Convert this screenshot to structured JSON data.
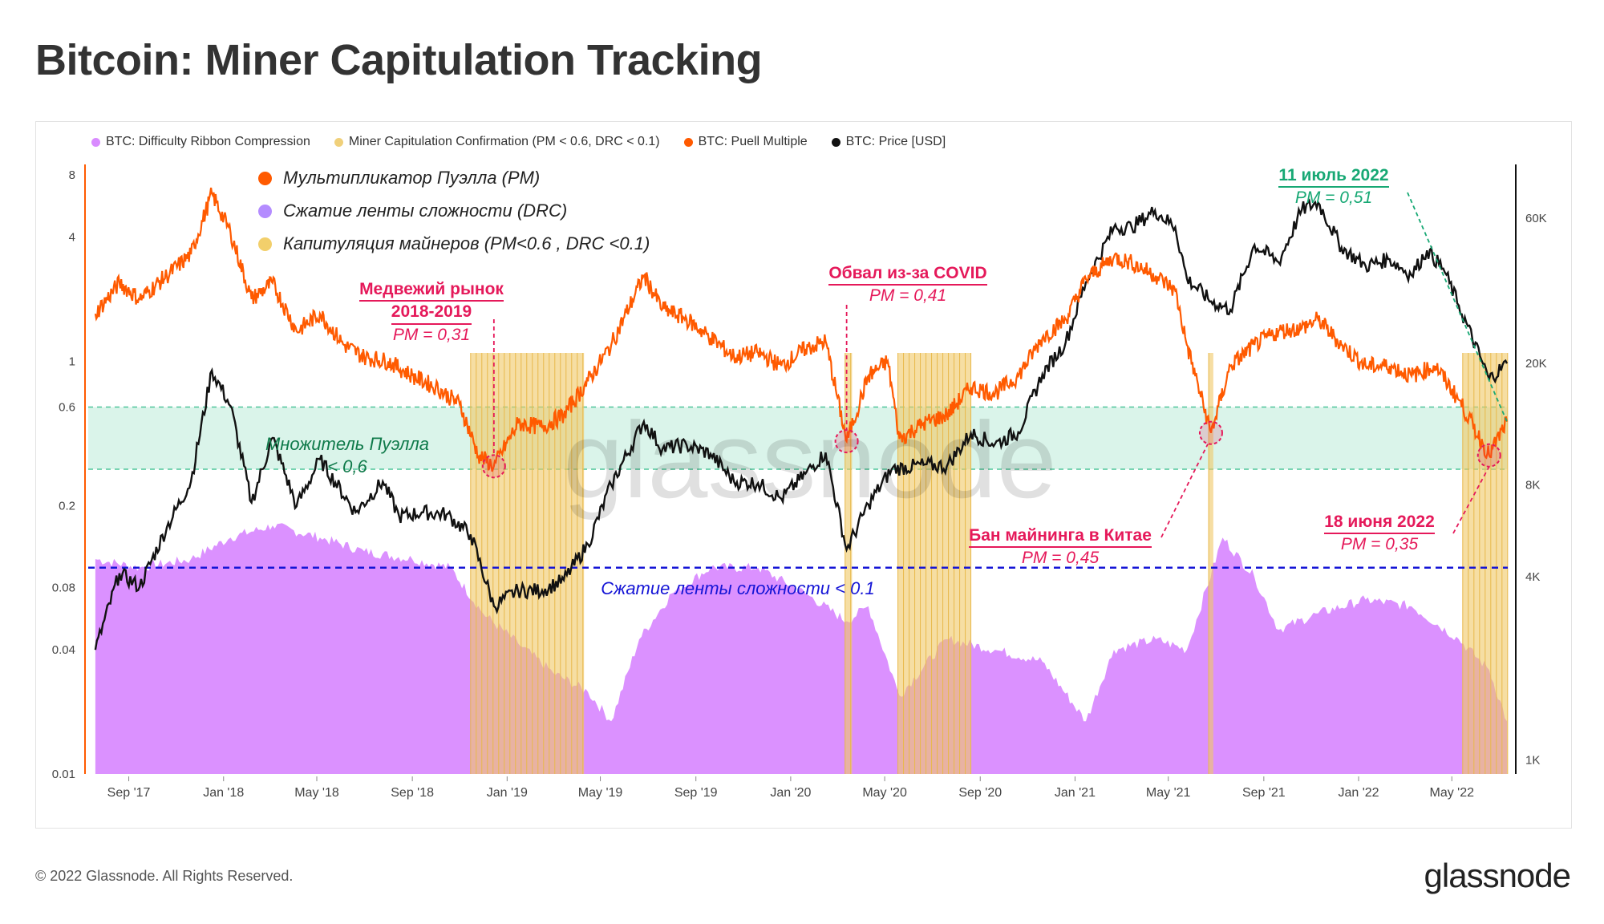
{
  "title": "Bitcoin: Miner Capitulation Tracking",
  "legend": [
    {
      "label": "BTC: Difficulty Ribbon Compression",
      "color": "#d98bff"
    },
    {
      "label": "Miner Capitulation Confirmation (PM < 0.6, DRC < 0.1)",
      "color": "#f0d07a"
    },
    {
      "label": "BTC: Puell Multiple",
      "color": "#ff5a00"
    },
    {
      "label": "BTC: Price [USD]",
      "color": "#111111"
    }
  ],
  "overlay_legend": [
    {
      "label": "Мультипликатор Пуэлла (PM)",
      "color": "#ff5a00"
    },
    {
      "label": "Сжатие ленты сложности (DRC)",
      "color": "#b48cff"
    },
    {
      "label": "Капитуляция майнеров (PM<0.6 , DRC <0.1)",
      "color": "#f2cf6b"
    }
  ],
  "annotations": {
    "bear_title_1": "Медвежий рынок",
    "bear_title_2": "2018-2019",
    "bear_pm": "PM = 0,31",
    "covid_title": "Обвал из-за COVID",
    "covid_pm": "PM = 0,41",
    "china_title": "Бан майнинга в Китае",
    "china_pm": "PM = 0,45",
    "july_title": "11 июль 2022",
    "july_pm": "PM = 0,51",
    "june_title": "18 июня 2022",
    "june_pm": "PM = 0,35",
    "puell_zone_1": "Множитель Пуэлла",
    "puell_zone_2": "< 0,6",
    "drc_line": "Сжатие ленты сложности < 0.1"
  },
  "colors": {
    "annotation_red": "#e5195a",
    "annotation_green": "#17a874",
    "threshold_blue": "#1515d6",
    "zone_fill": "#d4f2e6",
    "zone_border": "#4fc59a"
  },
  "footer": "© 2022 Glassnode. All Rights Reserved.",
  "brand": "glassnode",
  "watermark": "glassnode",
  "chart_data": {
    "type": "line",
    "title": "Bitcoin: Miner Capitulation Tracking",
    "x_ticks": [
      "Sep '17",
      "Jan '18",
      "May '18",
      "Sep '18",
      "Jan '19",
      "May '19",
      "Sep '19",
      "Jan '20",
      "May '20",
      "Sep '20",
      "Jan '21",
      "May '21",
      "Sep '21",
      "Jan '22",
      "May '22"
    ],
    "x_range": [
      "2017-07-17",
      "2022-07-12"
    ],
    "left_axis": {
      "scale": "log",
      "ticks": [
        "8",
        "4",
        "1",
        "0.6",
        "0.2",
        "0.08",
        "0.04",
        "0.01"
      ],
      "range": [
        0.01,
        9
      ]
    },
    "right_axis": {
      "scale": "log",
      "ticks": [
        "60K",
        "20K",
        "8K",
        "4K",
        "1K"
      ],
      "range": [
        900,
        90000
      ]
    },
    "thresholds": {
      "puell_multiple_zone": [
        0.3,
        0.6
      ],
      "drc": 0.1
    },
    "series": [
      {
        "name": "BTC: Puell Multiple",
        "axis": "left",
        "points": [
          [
            "2017-07-20",
            1.7
          ],
          [
            "2017-08-20",
            2.4
          ],
          [
            "2017-09-15",
            2.0
          ],
          [
            "2017-10-20",
            2.6
          ],
          [
            "2017-11-20",
            3.3
          ],
          [
            "2017-12-17",
            6.5
          ],
          [
            "2018-01-10",
            4.2
          ],
          [
            "2018-02-06",
            2.0
          ],
          [
            "2018-03-05",
            2.4
          ],
          [
            "2018-04-05",
            1.4
          ],
          [
            "2018-05-05",
            1.7
          ],
          [
            "2018-06-05",
            1.2
          ],
          [
            "2018-07-01",
            1.05
          ],
          [
            "2018-08-01",
            1.0
          ],
          [
            "2018-09-01",
            0.85
          ],
          [
            "2018-10-01",
            0.75
          ],
          [
            "2018-11-01",
            0.62
          ],
          [
            "2018-11-25",
            0.35
          ],
          [
            "2018-12-15",
            0.31
          ],
          [
            "2019-01-15",
            0.5
          ],
          [
            "2019-02-15",
            0.48
          ],
          [
            "2019-03-15",
            0.55
          ],
          [
            "2019-04-15",
            0.8
          ],
          [
            "2019-05-15",
            1.2
          ],
          [
            "2019-06-26",
            2.6
          ],
          [
            "2019-07-20",
            1.8
          ],
          [
            "2019-08-20",
            1.6
          ],
          [
            "2019-09-20",
            1.3
          ],
          [
            "2019-10-20",
            1.05
          ],
          [
            "2019-11-20",
            1.1
          ],
          [
            "2019-12-20",
            0.95
          ],
          [
            "2020-01-20",
            1.15
          ],
          [
            "2020-02-15",
            1.25
          ],
          [
            "2020-03-13",
            0.41
          ],
          [
            "2020-04-10",
            0.85
          ],
          [
            "2020-05-05",
            1.0
          ],
          [
            "2020-05-20",
            0.42
          ],
          [
            "2020-06-20",
            0.5
          ],
          [
            "2020-07-20",
            0.55
          ],
          [
            "2020-08-20",
            0.75
          ],
          [
            "2020-09-20",
            0.7
          ],
          [
            "2020-10-20",
            0.85
          ],
          [
            "2020-11-20",
            1.3
          ],
          [
            "2020-12-20",
            1.6
          ],
          [
            "2021-01-15",
            2.5
          ],
          [
            "2021-02-20",
            3.2
          ],
          [
            "2021-03-15",
            3.0
          ],
          [
            "2021-04-15",
            2.6
          ],
          [
            "2021-05-10",
            2.2
          ],
          [
            "2021-05-25",
            1.2
          ],
          [
            "2021-06-25",
            0.45
          ],
          [
            "2021-07-20",
            0.95
          ],
          [
            "2021-08-20",
            1.2
          ],
          [
            "2021-09-20",
            1.4
          ],
          [
            "2021-10-20",
            1.45
          ],
          [
            "2021-11-10",
            1.6
          ],
          [
            "2021-12-10",
            1.2
          ],
          [
            "2022-01-10",
            0.95
          ],
          [
            "2022-02-10",
            0.95
          ],
          [
            "2022-03-10",
            0.85
          ],
          [
            "2022-04-10",
            0.95
          ],
          [
            "2022-05-10",
            0.65
          ],
          [
            "2022-06-18",
            0.35
          ],
          [
            "2022-07-11",
            0.51
          ]
        ]
      },
      {
        "name": "BTC: Price [USD]",
        "axis": "right",
        "points": [
          [
            "2017-07-20",
            2300
          ],
          [
            "2017-08-20",
            4100
          ],
          [
            "2017-09-15",
            3700
          ],
          [
            "2017-10-20",
            5800
          ],
          [
            "2017-11-20",
            8200
          ],
          [
            "2017-12-17",
            19000
          ],
          [
            "2018-01-10",
            14500
          ],
          [
            "2018-02-06",
            7000
          ],
          [
            "2018-03-05",
            11400
          ],
          [
            "2018-04-05",
            6800
          ],
          [
            "2018-05-05",
            9700
          ],
          [
            "2018-06-20",
            6500
          ],
          [
            "2018-07-25",
            8200
          ],
          [
            "2018-08-15",
            6300
          ],
          [
            "2018-09-15",
            6500
          ],
          [
            "2018-10-15",
            6400
          ],
          [
            "2018-11-15",
            5500
          ],
          [
            "2018-12-15",
            3200
          ],
          [
            "2019-01-15",
            3600
          ],
          [
            "2019-02-15",
            3600
          ],
          [
            "2019-03-15",
            3900
          ],
          [
            "2019-04-15",
            5100
          ],
          [
            "2019-05-15",
            8000
          ],
          [
            "2019-06-26",
            12900
          ],
          [
            "2019-07-20",
            10500
          ],
          [
            "2019-08-20",
            10800
          ],
          [
            "2019-09-20",
            10100
          ],
          [
            "2019-10-20",
            8200
          ],
          [
            "2019-11-20",
            8100
          ],
          [
            "2019-12-20",
            7200
          ],
          [
            "2020-01-20",
            8700
          ],
          [
            "2020-02-15",
            10200
          ],
          [
            "2020-03-13",
            4900
          ],
          [
            "2020-04-10",
            6900
          ],
          [
            "2020-05-10",
            9000
          ],
          [
            "2020-06-20",
            9300
          ],
          [
            "2020-07-20",
            9200
          ],
          [
            "2020-08-20",
            11800
          ],
          [
            "2020-09-20",
            10900
          ],
          [
            "2020-10-20",
            11900
          ],
          [
            "2020-11-20",
            18400
          ],
          [
            "2020-12-20",
            23500
          ],
          [
            "2021-01-15",
            37000
          ],
          [
            "2021-02-20",
            55900
          ],
          [
            "2021-03-15",
            56000
          ],
          [
            "2021-04-14",
            63500
          ],
          [
            "2021-05-10",
            56000
          ],
          [
            "2021-05-25",
            38000
          ],
          [
            "2021-06-25",
            32000
          ],
          [
            "2021-07-20",
            30000
          ],
          [
            "2021-08-20",
            49000
          ],
          [
            "2021-09-20",
            43000
          ],
          [
            "2021-10-20",
            64000
          ],
          [
            "2021-11-10",
            67500
          ],
          [
            "2021-12-10",
            48000
          ],
          [
            "2022-01-10",
            41800
          ],
          [
            "2022-02-10",
            44000
          ],
          [
            "2022-03-10",
            39000
          ],
          [
            "2022-03-30",
            47000
          ],
          [
            "2022-04-20",
            41000
          ],
          [
            "2022-05-10",
            31000
          ],
          [
            "2022-06-18",
            17800
          ],
          [
            "2022-07-11",
            20000
          ]
        ]
      },
      {
        "name": "BTC: Difficulty Ribbon Compression",
        "axis": "left",
        "points": [
          [
            "2017-07-20",
            0.11
          ],
          [
            "2017-09-15",
            0.1
          ],
          [
            "2017-11-20",
            0.11
          ],
          [
            "2018-01-10",
            0.14
          ],
          [
            "2018-03-05",
            0.16
          ],
          [
            "2018-05-05",
            0.14
          ],
          [
            "2018-07-01",
            0.12
          ],
          [
            "2018-09-01",
            0.11
          ],
          [
            "2018-10-20",
            0.1
          ],
          [
            "2018-12-01",
            0.06
          ],
          [
            "2019-01-15",
            0.043
          ],
          [
            "2019-03-01",
            0.031
          ],
          [
            "2019-04-15",
            0.025
          ],
          [
            "2019-05-15",
            0.018
          ],
          [
            "2019-06-20",
            0.045
          ],
          [
            "2019-08-01",
            0.075
          ],
          [
            "2019-09-20",
            0.1
          ],
          [
            "2019-11-20",
            0.1
          ],
          [
            "2020-01-20",
            0.075
          ],
          [
            "2020-03-13",
            0.055
          ],
          [
            "2020-04-10",
            0.065
          ],
          [
            "2020-05-20",
            0.024
          ],
          [
            "2020-07-20",
            0.045
          ],
          [
            "2020-09-20",
            0.04
          ],
          [
            "2020-11-20",
            0.035
          ],
          [
            "2021-01-15",
            0.018
          ],
          [
            "2021-02-20",
            0.04
          ],
          [
            "2021-04-15",
            0.045
          ],
          [
            "2021-05-25",
            0.04
          ],
          [
            "2021-07-10",
            0.14
          ],
          [
            "2021-08-20",
            0.09
          ],
          [
            "2021-09-20",
            0.05
          ],
          [
            "2021-11-10",
            0.06
          ],
          [
            "2022-01-10",
            0.07
          ],
          [
            "2022-03-10",
            0.065
          ],
          [
            "2022-05-10",
            0.045
          ],
          [
            "2022-06-18",
            0.032
          ],
          [
            "2022-07-11",
            0.018
          ]
        ]
      }
    ],
    "capitulation_periods": [
      [
        "2018-11-15",
        "2019-04-10"
      ],
      [
        "2020-03-11",
        "2020-03-20"
      ],
      [
        "2020-05-18",
        "2020-08-20"
      ],
      [
        "2021-06-22",
        "2021-06-28"
      ],
      [
        "2022-05-15",
        "2022-07-12"
      ]
    ]
  }
}
